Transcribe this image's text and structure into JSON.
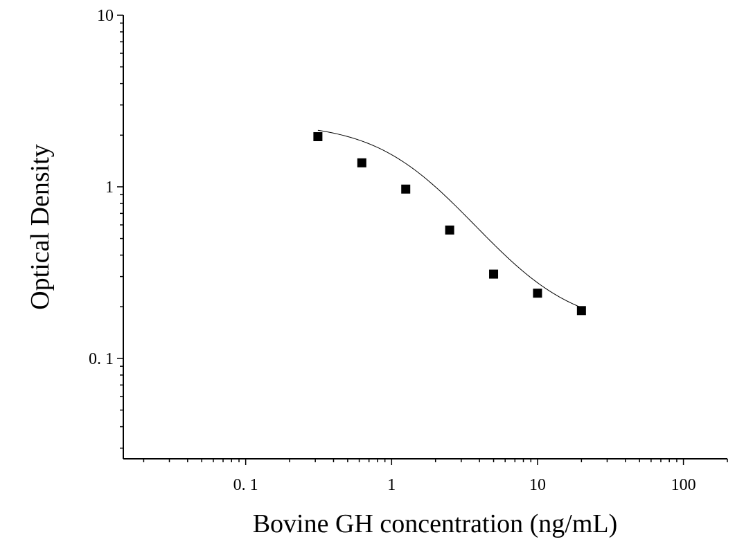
{
  "chart_data": {
    "type": "scatter",
    "xlabel": "Bovine GH concentration (ng/mL)",
    "ylabel": "Optical Density",
    "x_scale": "log",
    "y_scale": "log",
    "xlim": [
      0.0145,
      200
    ],
    "ylim": [
      0.026,
      10
    ],
    "x_ticks": [
      0.1,
      1,
      10,
      100
    ],
    "x_tick_labels": [
      "0. 1",
      "1",
      "10",
      "100"
    ],
    "y_ticks": [
      0.1,
      1,
      10
    ],
    "y_tick_labels": [
      "0. 1",
      "1",
      "10"
    ],
    "grid": false,
    "legend": false,
    "marker": "square",
    "marker_color": "#000000",
    "line_color": "#000000",
    "points": {
      "x": [
        0.3125,
        0.625,
        1.25,
        2.5,
        5,
        10,
        20
      ],
      "y": [
        1.96,
        1.38,
        0.97,
        0.56,
        0.31,
        0.24,
        0.19
      ]
    },
    "fit_curve": {
      "model": "4PL",
      "A": 2.35,
      "B": 1.45,
      "C": 1.45,
      "D": 0.15,
      "x_range": [
        0.3125,
        20
      ]
    }
  }
}
